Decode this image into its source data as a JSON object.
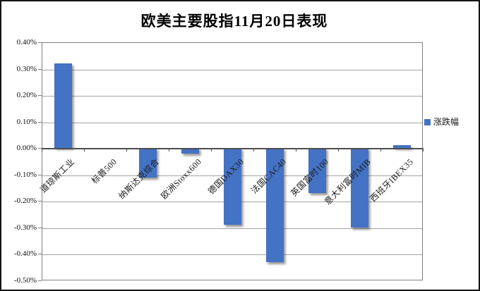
{
  "legend": {
    "label": "涨跌幅",
    "color": "#4472C4"
  },
  "chart_data": {
    "type": "bar",
    "title": "欧美主要股指11月20日表现",
    "categories": [
      "道琼斯工业",
      "标普500",
      "纳斯达克综合",
      "欧洲Stoxx600",
      "德国DAX30",
      "法国CAC40",
      "英国富时100",
      "意大利富时MIB",
      "西班牙IBEX35"
    ],
    "series": [
      {
        "name": "涨跌幅",
        "color": "#4472C4",
        "values": [
          0.32,
          0.0,
          -0.11,
          -0.02,
          -0.29,
          -0.43,
          -0.17,
          -0.3,
          0.01
        ]
      }
    ],
    "unit": "%",
    "ylim": [
      -0.5,
      0.4
    ],
    "ytick_step": 0.1,
    "ytick_labels": [
      "0.40%",
      "0.30%",
      "0.20%",
      "0.10%",
      "0.00%",
      "-0.10%",
      "-0.20%",
      "-0.30%",
      "-0.40%",
      "-0.50%"
    ],
    "grid": true,
    "legend_position": "right"
  }
}
